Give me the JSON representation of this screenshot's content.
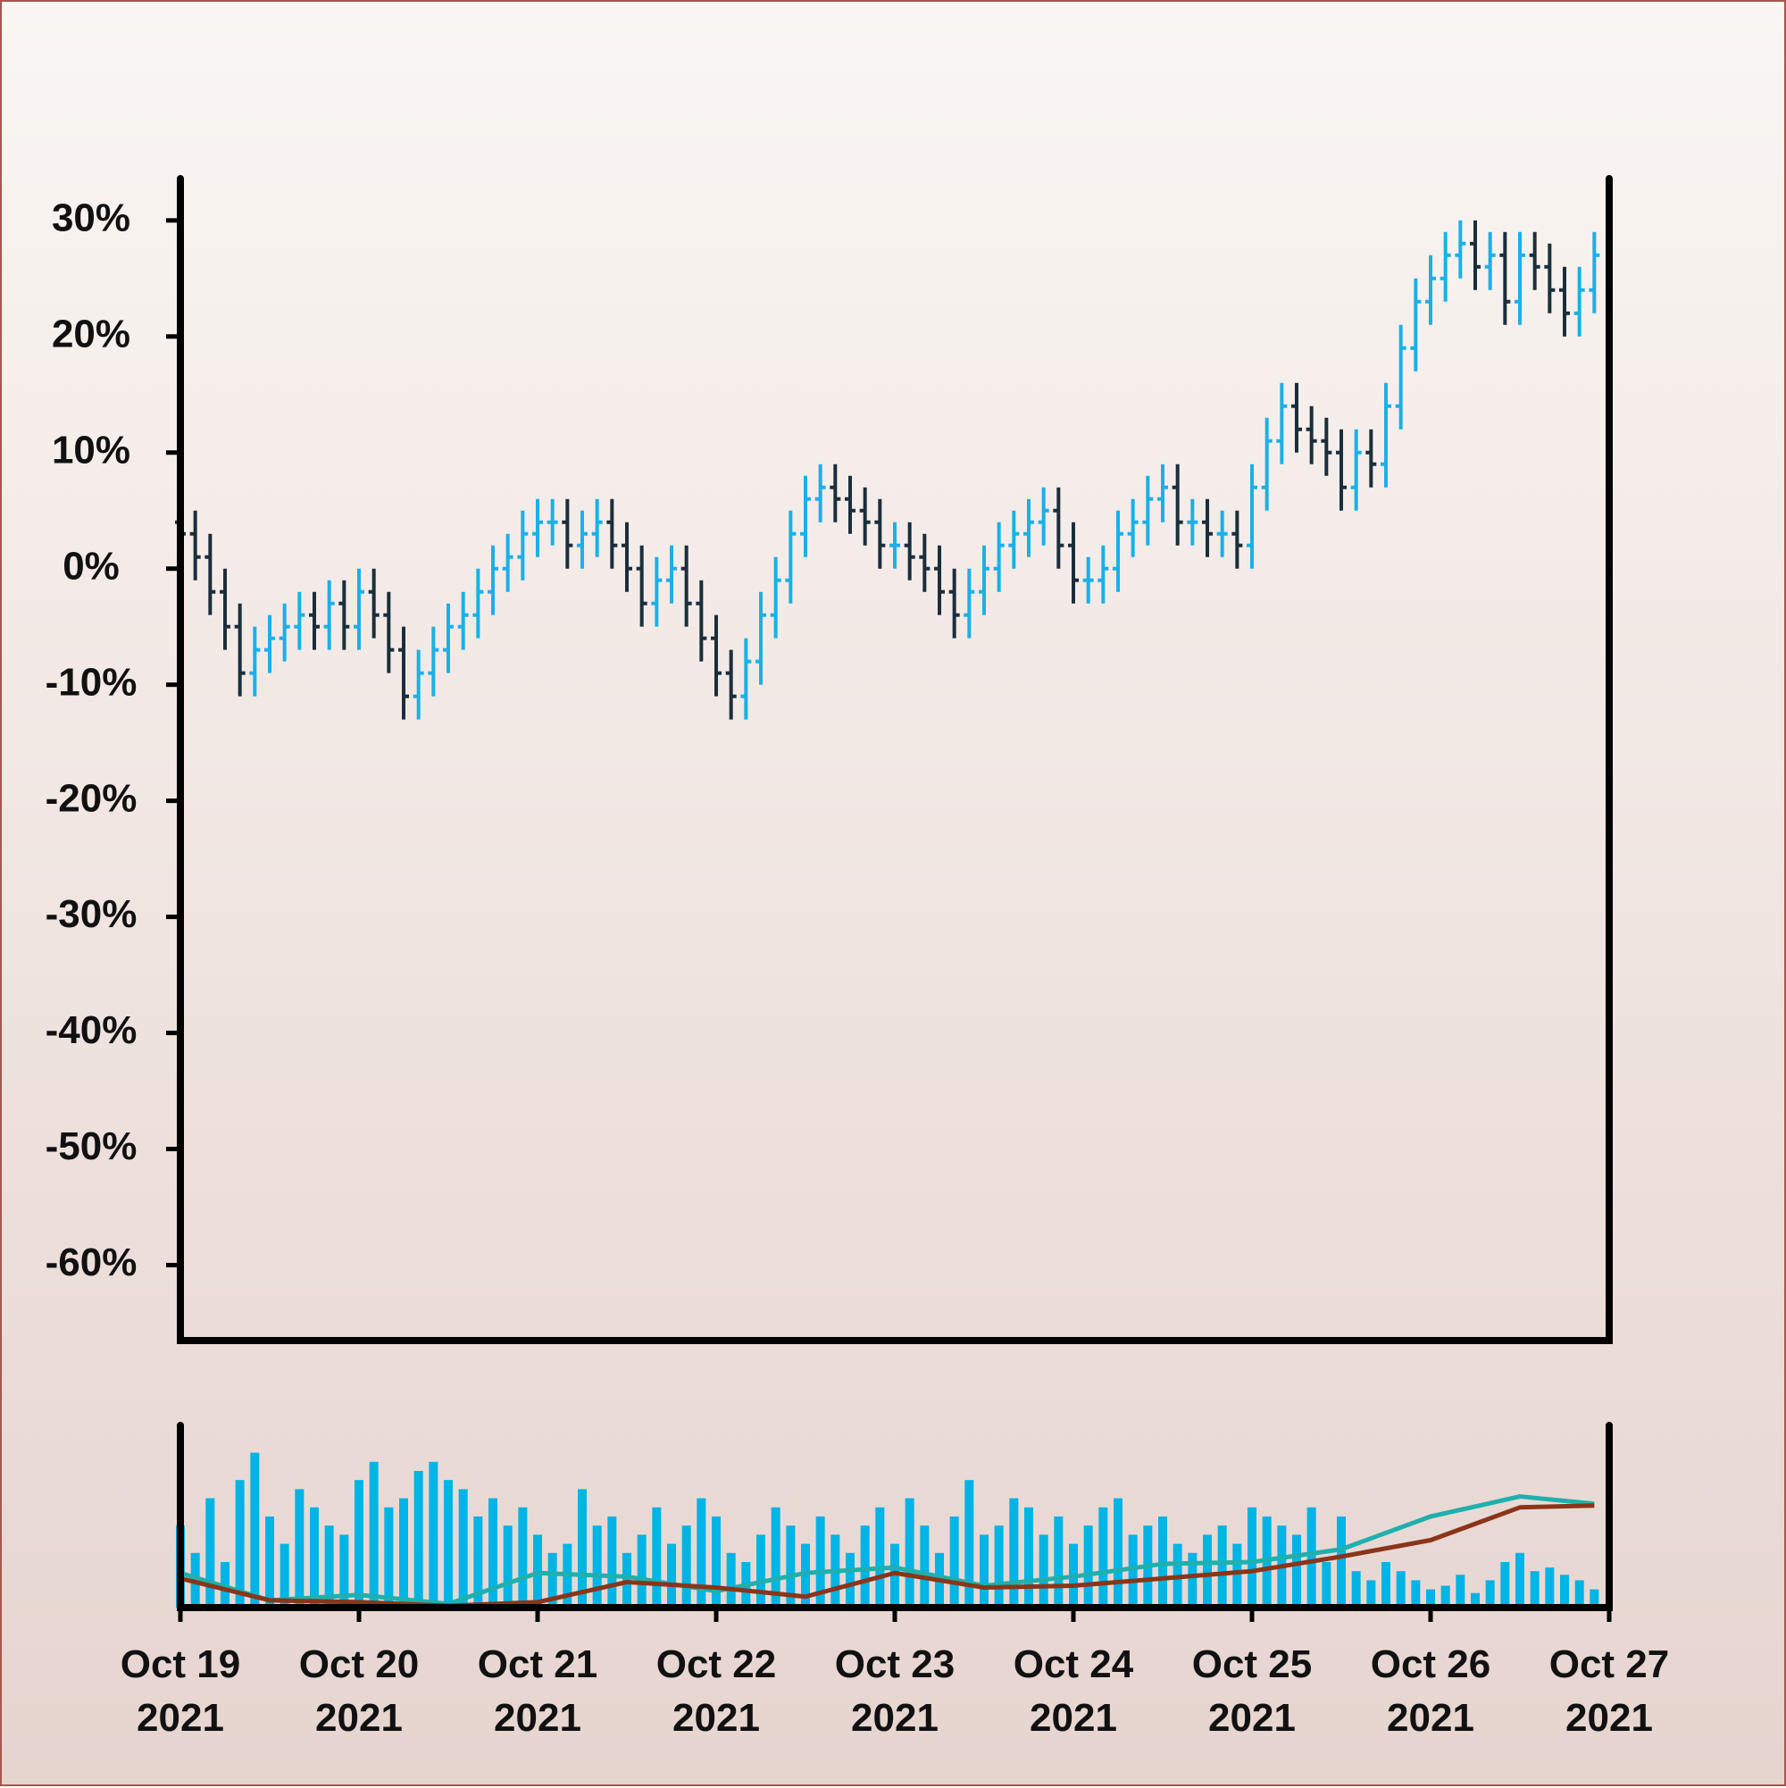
{
  "chart_data": [
    {
      "type": "ohlc",
      "up_color": "#1ab0e8",
      "down_color": "#1a2e3b",
      "xlim": [
        0,
        192
      ],
      "ylim": [
        -66.5,
        33.6
      ],
      "yticks": [
        {
          "value": 30,
          "label": "30%"
        },
        {
          "value": 20,
          "label": "20%"
        },
        {
          "value": 10,
          "label": "10%"
        },
        {
          "value": 0,
          "label": "0%"
        },
        {
          "value": -10,
          "label": "-10%"
        },
        {
          "value": -20,
          "label": "-20%"
        },
        {
          "value": -30,
          "label": "-30%"
        },
        {
          "value": -40,
          "label": "-40%"
        },
        {
          "value": -50,
          "label": "-50%"
        },
        {
          "value": -60,
          "label": "-60%"
        }
      ],
      "x": [
        0,
        2,
        4,
        6,
        8,
        10,
        12,
        14,
        16,
        18,
        20,
        22,
        24,
        26,
        28,
        30,
        32,
        34,
        36,
        38,
        40,
        42,
        44,
        46,
        48,
        50,
        52,
        54,
        56,
        58,
        60,
        62,
        64,
        66,
        68,
        70,
        72,
        74,
        76,
        78,
        80,
        82,
        84,
        86,
        88,
        90,
        92,
        94,
        96,
        98,
        100,
        102,
        104,
        106,
        108,
        110,
        112,
        114,
        116,
        118,
        120,
        122,
        124,
        126,
        128,
        130,
        132,
        134,
        136,
        138,
        140,
        142,
        144,
        146,
        148,
        150,
        152,
        154,
        156,
        158,
        160,
        162,
        164,
        166,
        168,
        170,
        172,
        174,
        176,
        178,
        180,
        182,
        184,
        186,
        188,
        190
      ],
      "open": [
        4,
        3,
        1,
        -2,
        -5,
        -9,
        -7,
        -6,
        -5,
        -4,
        -5,
        -3,
        -5,
        -2,
        -4,
        -7,
        -11,
        -9,
        -7,
        -5,
        -4,
        -2,
        0,
        1,
        3,
        4,
        4,
        2,
        3,
        4,
        2,
        0,
        -3,
        -1,
        0,
        -3,
        -6,
        -9,
        -11,
        -8,
        -4,
        -1,
        3,
        6,
        7,
        6,
        5,
        4,
        2,
        2,
        1,
        0,
        -2,
        -4,
        -2,
        0,
        2,
        3,
        4,
        5,
        2,
        -1,
        -1,
        0,
        3,
        4,
        6,
        7,
        4,
        4,
        3,
        3,
        2,
        7,
        11,
        14,
        12,
        11,
        10,
        7,
        10,
        9,
        14,
        19,
        23,
        25,
        27,
        28,
        26,
        27,
        23,
        27,
        26,
        24,
        22,
        24
      ],
      "high": [
        6,
        5,
        3,
        0,
        -3,
        -5,
        -4,
        -3,
        -2,
        -2,
        -1,
        -1,
        0,
        0,
        -2,
        -5,
        -7,
        -5,
        -3,
        -2,
        0,
        2,
        3,
        5,
        6,
        6,
        6,
        5,
        6,
        6,
        4,
        2,
        1,
        2,
        2,
        -1,
        -4,
        -7,
        -6,
        -2,
        1,
        5,
        8,
        9,
        9,
        8,
        7,
        6,
        4,
        4,
        3,
        2,
        0,
        0,
        2,
        4,
        5,
        6,
        7,
        7,
        4,
        1,
        2,
        5,
        6,
        8,
        9,
        9,
        6,
        6,
        5,
        5,
        9,
        13,
        16,
        16,
        14,
        13,
        12,
        12,
        12,
        16,
        21,
        25,
        27,
        29,
        30,
        30,
        29,
        29,
        29,
        29,
        28,
        26,
        26,
        29
      ],
      "low": [
        1,
        -1,
        -4,
        -7,
        -11,
        -11,
        -9,
        -8,
        -7,
        -7,
        -7,
        -7,
        -7,
        -6,
        -9,
        -13,
        -13,
        -11,
        -9,
        -7,
        -6,
        -4,
        -2,
        -1,
        1,
        2,
        0,
        0,
        1,
        0,
        -2,
        -5,
        -5,
        -3,
        -5,
        -8,
        -11,
        -13,
        -13,
        -10,
        -6,
        -3,
        1,
        4,
        4,
        3,
        2,
        0,
        0,
        -1,
        -2,
        -4,
        -6,
        -6,
        -4,
        -2,
        0,
        1,
        2,
        0,
        -3,
        -3,
        -3,
        -2,
        1,
        2,
        4,
        2,
        2,
        1,
        1,
        0,
        0,
        5,
        9,
        10,
        9,
        8,
        5,
        5,
        7,
        7,
        12,
        17,
        21,
        23,
        25,
        24,
        24,
        21,
        21,
        24,
        22,
        20,
        20,
        22
      ],
      "close": [
        3,
        1,
        -2,
        -5,
        -9,
        -7,
        -6,
        -5,
        -4,
        -5,
        -3,
        -5,
        -2,
        -4,
        -7,
        -11,
        -9,
        -7,
        -5,
        -4,
        -2,
        0,
        1,
        3,
        4,
        4,
        2,
        3,
        4,
        2,
        0,
        -3,
        -1,
        0,
        -3,
        -6,
        -9,
        -11,
        -8,
        -4,
        -1,
        3,
        6,
        7,
        6,
        5,
        4,
        2,
        2,
        1,
        0,
        -2,
        -4,
        -2,
        0,
        2,
        3,
        4,
        5,
        2,
        -1,
        -1,
        0,
        3,
        4,
        6,
        7,
        4,
        4,
        3,
        3,
        2,
        7,
        11,
        14,
        12,
        11,
        10,
        7,
        10,
        9,
        14,
        19,
        23,
        25,
        27,
        28,
        26,
        27,
        23,
        27,
        26,
        24,
        22,
        24,
        27
      ]
    },
    {
      "type": "bar",
      "color": "#00b4e6",
      "xlim": [
        0,
        192
      ],
      "ylim": [
        0,
        100
      ],
      "xticks": [
        {
          "value": 0,
          "label": "Oct 19 2021"
        },
        {
          "value": 24,
          "label": "Oct 20 2021"
        },
        {
          "value": 48,
          "label": "Oct 21 2021"
        },
        {
          "value": 72,
          "label": "Oct 22 2021"
        },
        {
          "value": 96,
          "label": "Oct 23 2021"
        },
        {
          "value": 120,
          "label": "Oct 24 2021"
        },
        {
          "value": 144,
          "label": "Oct 25 2021"
        },
        {
          "value": 168,
          "label": "Oct 26 2021"
        },
        {
          "value": 192,
          "label": "Oct 27 2021"
        }
      ],
      "x": [
        0,
        2,
        4,
        6,
        8,
        10,
        12,
        14,
        16,
        18,
        20,
        22,
        24,
        26,
        28,
        30,
        32,
        34,
        36,
        38,
        40,
        42,
        44,
        46,
        48,
        50,
        52,
        54,
        56,
        58,
        60,
        62,
        64,
        66,
        68,
        70,
        72,
        74,
        76,
        78,
        80,
        82,
        84,
        86,
        88,
        90,
        92,
        94,
        96,
        98,
        100,
        102,
        104,
        106,
        108,
        110,
        112,
        114,
        116,
        118,
        120,
        122,
        124,
        126,
        128,
        130,
        132,
        134,
        136,
        138,
        140,
        142,
        144,
        146,
        148,
        150,
        152,
        154,
        156,
        158,
        160,
        162,
        164,
        166,
        168,
        170,
        172,
        174,
        176,
        178,
        180,
        182,
        184,
        186,
        188,
        190
      ],
      "values": [
        45,
        30,
        60,
        25,
        70,
        85,
        50,
        35,
        65,
        55,
        45,
        40,
        70,
        80,
        55,
        60,
        75,
        80,
        70,
        65,
        50,
        60,
        45,
        55,
        40,
        30,
        35,
        65,
        45,
        50,
        30,
        40,
        55,
        35,
        45,
        60,
        50,
        30,
        25,
        40,
        55,
        45,
        35,
        50,
        40,
        30,
        45,
        55,
        35,
        60,
        45,
        30,
        50,
        70,
        40,
        45,
        60,
        55,
        40,
        50,
        35,
        45,
        55,
        60,
        40,
        45,
        50,
        35,
        30,
        40,
        45,
        35,
        55,
        50,
        45,
        40,
        55,
        25,
        50,
        20,
        15,
        25,
        20,
        15,
        10,
        12,
        18,
        8,
        15,
        25,
        30,
        20,
        22,
        18,
        15,
        10
      ],
      "lines": [
        {
          "color": "#1fb0ad",
          "x": [
            0,
            12,
            24,
            36,
            48,
            60,
            72,
            84,
            96,
            108,
            120,
            132,
            144,
            156,
            168,
            180,
            190
          ],
          "values": [
            19,
            4,
            7,
            2,
            19,
            17,
            9,
            19,
            22,
            12,
            17,
            24,
            25,
            32,
            50,
            61,
            57
          ]
        },
        {
          "color": "#8a3519",
          "x": [
            0,
            12,
            24,
            36,
            48,
            60,
            72,
            84,
            96,
            108,
            120,
            132,
            144,
            156,
            168,
            180,
            190
          ],
          "values": [
            16,
            4,
            3,
            1,
            3,
            14,
            11,
            6,
            19,
            11,
            12,
            16,
            20,
            28,
            37,
            55,
            56
          ]
        }
      ]
    }
  ]
}
